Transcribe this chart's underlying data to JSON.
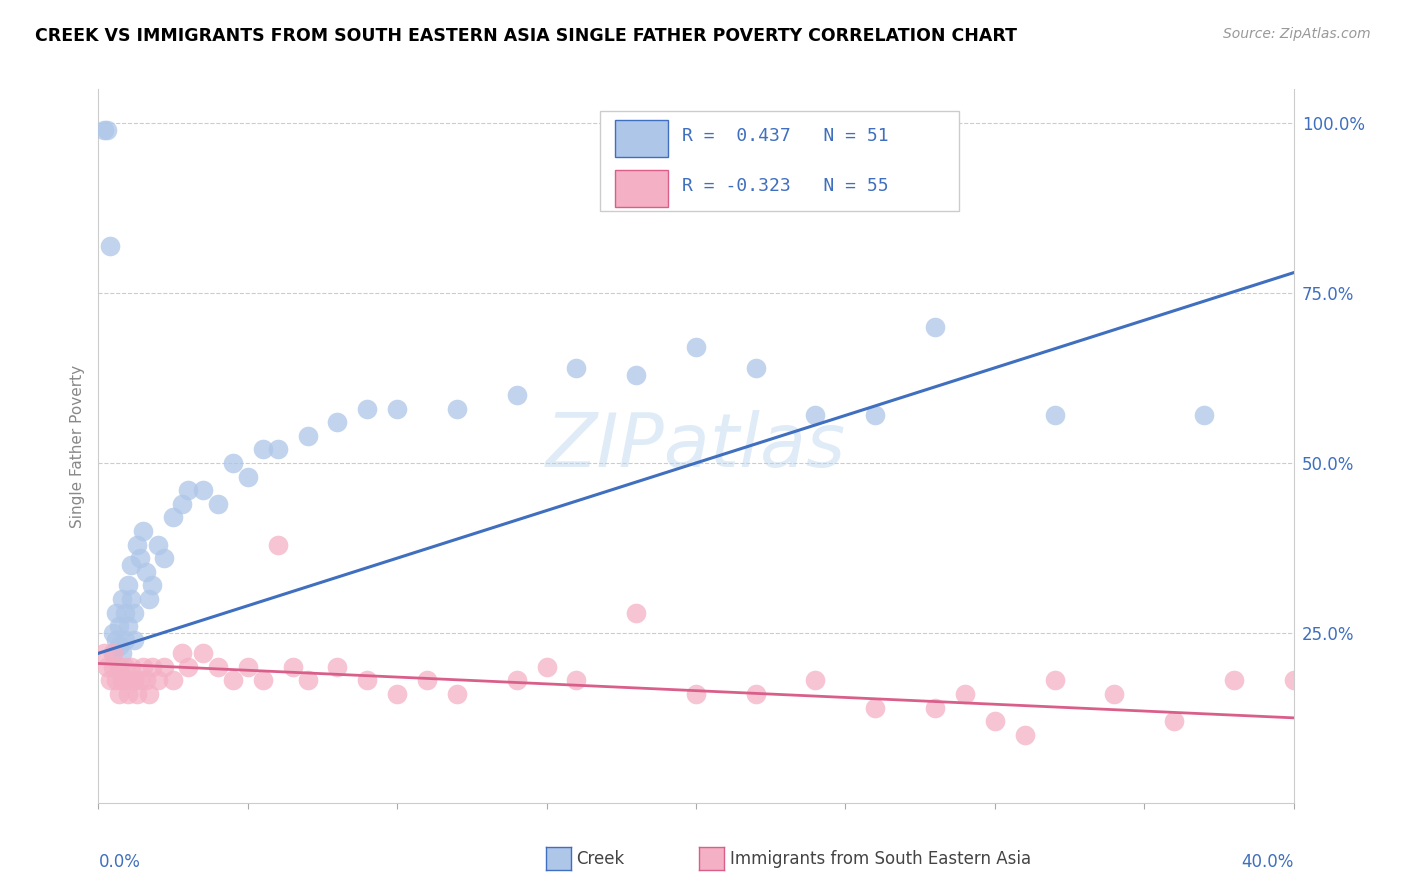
{
  "title": "CREEK VS IMMIGRANTS FROM SOUTH EASTERN ASIA SINGLE FATHER POVERTY CORRELATION CHART",
  "source": "Source: ZipAtlas.com",
  "ylabel": "Single Father Poverty",
  "ytick_labels_right": [
    "",
    "25.0%",
    "50.0%",
    "75.0%",
    "100.0%"
  ],
  "yticks": [
    0.0,
    0.25,
    0.5,
    0.75,
    1.0
  ],
  "watermark": "ZIPatlas",
  "blue_fill": "#aec6e8",
  "blue_line": "#3f6fbe",
  "pink_fill": "#f4b0c5",
  "pink_line": "#d95f8a",
  "xmin": 0.0,
  "xmax": 0.4,
  "ymin": 0.0,
  "ymax": 1.05,
  "creek_trend": [
    0.0,
    0.22,
    0.4,
    0.78
  ],
  "imm_trend": [
    0.0,
    0.205,
    0.4,
    0.125
  ],
  "legend_r1": "R =  0.437   N = 51",
  "legend_r2": "R = -0.323   N = 55",
  "creek_x": [
    0.002,
    0.003,
    0.004,
    0.005,
    0.005,
    0.006,
    0.006,
    0.007,
    0.007,
    0.008,
    0.008,
    0.009,
    0.009,
    0.01,
    0.01,
    0.011,
    0.011,
    0.012,
    0.012,
    0.013,
    0.014,
    0.015,
    0.016,
    0.017,
    0.018,
    0.02,
    0.022,
    0.025,
    0.028,
    0.03,
    0.035,
    0.04,
    0.045,
    0.05,
    0.055,
    0.06,
    0.07,
    0.08,
    0.09,
    0.1,
    0.12,
    0.14,
    0.16,
    0.18,
    0.2,
    0.22,
    0.24,
    0.26,
    0.28,
    0.32,
    0.37
  ],
  "creek_y": [
    0.99,
    0.99,
    0.82,
    0.25,
    0.22,
    0.24,
    0.28,
    0.23,
    0.26,
    0.22,
    0.3,
    0.28,
    0.24,
    0.32,
    0.26,
    0.35,
    0.3,
    0.28,
    0.24,
    0.38,
    0.36,
    0.4,
    0.34,
    0.3,
    0.32,
    0.38,
    0.36,
    0.42,
    0.44,
    0.46,
    0.46,
    0.44,
    0.5,
    0.48,
    0.52,
    0.52,
    0.54,
    0.56,
    0.58,
    0.58,
    0.58,
    0.6,
    0.64,
    0.63,
    0.67,
    0.64,
    0.57,
    0.57,
    0.7,
    0.57,
    0.57
  ],
  "imm_x": [
    0.002,
    0.003,
    0.004,
    0.005,
    0.005,
    0.006,
    0.007,
    0.007,
    0.008,
    0.009,
    0.01,
    0.01,
    0.011,
    0.012,
    0.013,
    0.014,
    0.015,
    0.016,
    0.017,
    0.018,
    0.02,
    0.022,
    0.025,
    0.028,
    0.03,
    0.035,
    0.04,
    0.045,
    0.05,
    0.055,
    0.06,
    0.065,
    0.07,
    0.08,
    0.09,
    0.1,
    0.11,
    0.12,
    0.14,
    0.15,
    0.16,
    0.18,
    0.2,
    0.22,
    0.24,
    0.26,
    0.28,
    0.29,
    0.3,
    0.31,
    0.32,
    0.34,
    0.36,
    0.38,
    0.4
  ],
  "imm_y": [
    0.22,
    0.2,
    0.18,
    0.2,
    0.22,
    0.18,
    0.16,
    0.2,
    0.18,
    0.2,
    0.18,
    0.16,
    0.2,
    0.18,
    0.16,
    0.18,
    0.2,
    0.18,
    0.16,
    0.2,
    0.18,
    0.2,
    0.18,
    0.22,
    0.2,
    0.22,
    0.2,
    0.18,
    0.2,
    0.18,
    0.38,
    0.2,
    0.18,
    0.2,
    0.18,
    0.16,
    0.18,
    0.16,
    0.18,
    0.2,
    0.18,
    0.28,
    0.16,
    0.16,
    0.18,
    0.14,
    0.14,
    0.16,
    0.12,
    0.1,
    0.18,
    0.16,
    0.12,
    0.18,
    0.18
  ]
}
